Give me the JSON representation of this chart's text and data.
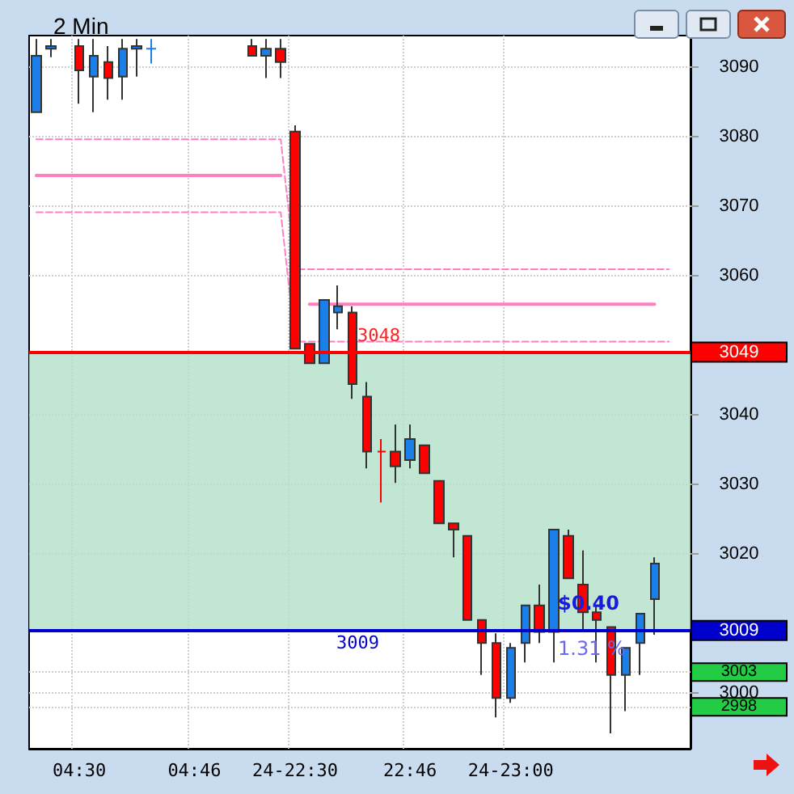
{
  "chart_data": {
    "type": "candlestick",
    "title": "2 Min",
    "categories": [
      null,
      null,
      null,
      "04:30",
      null,
      null,
      null,
      null,
      null,
      null,
      null,
      "04:46",
      null,
      null,
      null,
      null,
      null,
      null,
      "24-22:30",
      null,
      null,
      null,
      null,
      null,
      null,
      null,
      "22:46",
      null,
      null,
      null,
      null,
      null,
      null,
      "24-23:00",
      null,
      null,
      null,
      null,
      null,
      null,
      null,
      null,
      null,
      null,
      null,
      null
    ],
    "ohlc": [
      [
        3083.5,
        3094,
        3083.5,
        3091.6
      ],
      [
        3092.6,
        3094,
        3091.4,
        3093.0
      ],
      null,
      [
        3093.0,
        3094,
        3084.7,
        3089.5
      ],
      [
        3088.6,
        3094,
        3083.5,
        3091.6
      ],
      [
        3090.7,
        3093.0,
        3085.3,
        3088.4
      ],
      [
        3088.6,
        3094,
        3085.3,
        3092.6
      ],
      [
        3092.6,
        3094,
        3088.6,
        3093.0
      ],
      [
        3092.6,
        3094,
        3090.5,
        3092.6
      ],
      null,
      null,
      null,
      null,
      null,
      null,
      [
        3093.0,
        3094,
        3091.6,
        3091.6
      ],
      [
        3091.6,
        3094,
        3088.4,
        3092.6
      ],
      [
        3092.6,
        3094,
        3088.4,
        3090.7
      ],
      [
        3080.7,
        3081.6,
        3049.5,
        3049.5
      ],
      [
        3050.2,
        3050.2,
        3047.4,
        3047.4
      ],
      [
        3047.4,
        3056.5,
        3047.4,
        3056.5
      ],
      [
        3054.7,
        3058.6,
        3052.3,
        3055.6
      ],
      [
        3054.7,
        3055.6,
        3042.3,
        3044.4
      ],
      [
        3042.6,
        3044.7,
        3032.3,
        3034.7
      ],
      [
        3034.7,
        3036.5,
        3027.4,
        3034.7
      ],
      [
        3034.7,
        3038.6,
        3030.2,
        3032.6
      ],
      [
        3033.5,
        3038.6,
        3032.3,
        3036.5
      ],
      [
        3035.6,
        3035.6,
        3031.6,
        3031.6
      ],
      [
        3030.5,
        3030.5,
        3024.4,
        3024.4
      ],
      [
        3024.4,
        3024.4,
        3019.5,
        3023.5
      ],
      [
        3022.6,
        3022.6,
        3010.5,
        3010.5
      ],
      [
        3010.5,
        3010.5,
        3002.6,
        3007.2
      ],
      [
        3007.2,
        3008.6,
        2996.5,
        2999.3
      ],
      [
        2999.3,
        3007.2,
        2998.6,
        3006.5
      ],
      [
        3007.2,
        3012.6,
        3004.4,
        3012.6
      ],
      [
        3012.6,
        3015.6,
        3007.2,
        3008.8
      ],
      [
        3008.8,
        3023.5,
        3004.4,
        3023.5
      ],
      [
        3022.6,
        3023.5,
        3016.5,
        3016.5
      ],
      [
        3015.6,
        3020.5,
        3008.8,
        3011.6
      ],
      [
        3011.6,
        3012.6,
        3004.4,
        3010.5
      ],
      [
        3009.5,
        3009.5,
        2994.2,
        3002.6
      ],
      [
        3002.6,
        3006.5,
        2997.4,
        3006.5
      ],
      [
        3007.2,
        3011.4,
        3002.6,
        3011.4
      ],
      [
        3013.5,
        3019.5,
        3008.4,
        3018.6
      ],
      null,
      null
    ],
    "colors": [
      "#1a7fe8",
      "#1a7fe8",
      null,
      "#ff0000",
      "#1a7fe8",
      "#ff0000",
      "#1a7fe8",
      "#1a7fe8",
      "#1a7fe8",
      null,
      null,
      null,
      null,
      null,
      null,
      "#ff0000",
      "#1a7fe8",
      "#ff0000",
      "#ff0000",
      "#ff0000",
      "#1a7fe8",
      "#1a7fe8",
      "#ff0000",
      "#ff0000",
      "#ff0000",
      "#ff0000",
      "#1a7fe8",
      "#ff0000",
      "#ff0000",
      "#ff0000",
      "#ff0000",
      "#ff0000",
      "#ff0000",
      "#1a7fe8",
      "#1a7fe8",
      "#ff0000",
      "#1a7fe8",
      "#ff0000",
      "#ff0000",
      "#ff0000",
      "#ff0000",
      "#1a7fe8",
      "#1a7fe8",
      "#1a7fe8",
      null,
      null
    ],
    "series": [
      {
        "type": "line",
        "color": "#ff80c0",
        "line_style": "solid",
        "values": [
          3074.4,
          3074.4,
          3074.4,
          3074.4,
          3074.4,
          3074.4,
          3074.4,
          3074.4,
          3074.4,
          3074.4,
          3074.4,
          3074.4,
          3074.4,
          3074.4,
          3074.4,
          3074.4,
          3074.4,
          3074.4,
          null,
          3055.9,
          3055.9,
          3055.9,
          3055.9,
          3055.9,
          3055.9,
          3055.9,
          3055.9,
          3055.9,
          3055.9,
          3055.9,
          3055.9,
          3055.9,
          3055.9,
          3055.9,
          3055.9,
          3055.9,
          3055.9,
          3055.9,
          3055.9,
          3055.9,
          3055.9,
          3055.9,
          3055.9,
          3055.9,
          null,
          null
        ]
      },
      {
        "type": "line",
        "color": "#ff80c0",
        "line_style": "dashed",
        "values": [
          3079.6,
          3079.6,
          3079.6,
          3079.6,
          3079.6,
          3079.6,
          3079.6,
          3079.6,
          3079.6,
          3079.6,
          3079.6,
          3079.6,
          3079.6,
          3079.6,
          3079.6,
          3079.6,
          3079.6,
          3079.6,
          3060.9,
          3060.9,
          3060.9,
          3060.9,
          3060.9,
          3060.9,
          3060.9,
          3060.9,
          3060.9,
          3060.9,
          3060.9,
          3060.9,
          3060.9,
          3060.9,
          3060.9,
          3060.9,
          3060.9,
          3060.9,
          3060.9,
          3060.9,
          3060.9,
          3060.9,
          3060.9,
          3060.9,
          3060.9,
          3060.9,
          3060.9,
          null
        ]
      },
      {
        "type": "line",
        "color": "#ff80c0",
        "line_style": "dashed",
        "values": [
          3069.1,
          3069.1,
          3069.1,
          3069.1,
          3069.1,
          3069.1,
          3069.1,
          3069.1,
          3069.1,
          3069.1,
          3069.1,
          3069.1,
          3069.1,
          3069.1,
          3069.1,
          3069.1,
          3069.1,
          3069.1,
          3050.5,
          3050.5,
          3050.5,
          3050.5,
          3050.5,
          3050.5,
          3050.5,
          3050.5,
          3050.5,
          3050.5,
          3050.5,
          3050.5,
          3050.5,
          3050.5,
          3050.5,
          3050.5,
          3050.5,
          3050.5,
          3050.5,
          3050.5,
          3050.5,
          3050.5,
          3050.5,
          3050.5,
          3050.5,
          3050.5,
          3050.5,
          null
        ]
      }
    ],
    "ylim": [
      2992,
      3094.5
    ],
    "yticks": [
      2998,
      3000,
      3003,
      3009,
      3020,
      3030,
      3040,
      3049,
      3060,
      3070,
      3080,
      3090
    ],
    "grid": true,
    "marker": "none",
    "ref_lines": [
      {
        "axis": "y",
        "value": 3049,
        "color": "#ff0000"
      },
      {
        "axis": "y",
        "value": 3009,
        "label": "3009",
        "color": "#0000cc"
      }
    ],
    "bands": [
      {
        "axis": "y",
        "from": 3009,
        "to": 3049,
        "color": "#b2e0c8"
      }
    ],
    "annotations": [
      "$0.40",
      "1.31 %",
      "3048"
    ]
  }
}
